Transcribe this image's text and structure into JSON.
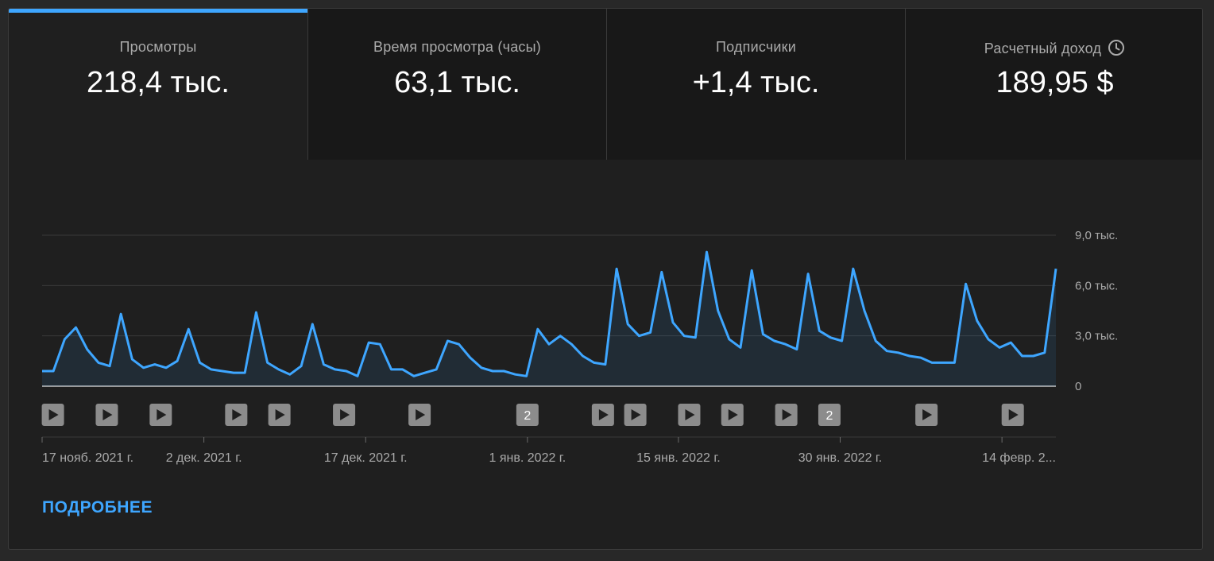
{
  "tabs": [
    {
      "label": "Просмотры",
      "value": "218,4 тыс.",
      "active": true
    },
    {
      "label": "Время просмотра (часы)",
      "value": "63,1 тыс.",
      "active": false
    },
    {
      "label": "Подписчики",
      "value": "+1,4 тыс.",
      "active": false
    },
    {
      "label": "Расчетный доход",
      "value": "189,95 $",
      "active": false,
      "icon": "clock-icon"
    }
  ],
  "more_label": "ПОДРОБНЕЕ",
  "colors": {
    "line": "#3ea6ff",
    "accent": "#3ea6ff"
  },
  "chart_data": {
    "type": "area",
    "x_start": "2021-11-17",
    "x_end": "2022-02-19",
    "y_ticks": [
      {
        "value": 0,
        "label": "0"
      },
      {
        "value": 3000,
        "label": "3,0 тыс."
      },
      {
        "value": 6000,
        "label": "6,0 тыс."
      },
      {
        "value": 9000,
        "label": "9,0 тыс."
      }
    ],
    "ylim": [
      0,
      9000
    ],
    "x_ticks": [
      {
        "date": "2021-11-17",
        "label": "17 нояб. 2021 г."
      },
      {
        "date": "2021-12-02",
        "label": "2 дек. 2021 г."
      },
      {
        "date": "2021-12-17",
        "label": "17 дек. 2021 г."
      },
      {
        "date": "2022-01-01",
        "label": "1 янв. 2022 г."
      },
      {
        "date": "2022-01-15",
        "label": "15 янв. 2022 г."
      },
      {
        "date": "2022-01-30",
        "label": "30 янв. 2022 г."
      },
      {
        "date": "2022-02-14",
        "label": "14 февр. 2..."
      }
    ],
    "values": [
      900,
      900,
      2800,
      3500,
      2200,
      1400,
      1200,
      4300,
      1600,
      1100,
      1300,
      1100,
      1500,
      3400,
      1400,
      1000,
      900,
      800,
      800,
      4400,
      1400,
      1000,
      700,
      1200,
      3700,
      1300,
      1000,
      900,
      600,
      2600,
      2500,
      1000,
      1000,
      600,
      800,
      1000,
      2700,
      2500,
      1700,
      1100,
      900,
      900,
      700,
      600,
      3400,
      2500,
      3000,
      2500,
      1800,
      1400,
      1300,
      7000,
      3700,
      3000,
      3200,
      6800,
      3800,
      3000,
      2900,
      8000,
      4500,
      2800,
      2300,
      6900,
      3100,
      2700,
      2500,
      2200,
      6700,
      3300,
      2900,
      2700,
      7000,
      4500,
      2700,
      2100,
      2000,
      1800,
      1700,
      1400,
      1400,
      1400,
      6100,
      3900,
      2800,
      2300,
      2600,
      1800,
      1800,
      2000,
      7000
    ],
    "video_markers": [
      {
        "date": "2021-11-18",
        "label": ""
      },
      {
        "date": "2021-11-23",
        "label": ""
      },
      {
        "date": "2021-11-28",
        "label": ""
      },
      {
        "date": "2021-12-05",
        "label": ""
      },
      {
        "date": "2021-12-09",
        "label": ""
      },
      {
        "date": "2021-12-15",
        "label": ""
      },
      {
        "date": "2021-12-22",
        "label": ""
      },
      {
        "date": "2022-01-01",
        "label": "2"
      },
      {
        "date": "2022-01-08",
        "label": ""
      },
      {
        "date": "2022-01-11",
        "label": ""
      },
      {
        "date": "2022-01-16",
        "label": ""
      },
      {
        "date": "2022-01-20",
        "label": ""
      },
      {
        "date": "2022-01-25",
        "label": ""
      },
      {
        "date": "2022-01-29",
        "label": "2"
      },
      {
        "date": "2022-02-07",
        "label": ""
      },
      {
        "date": "2022-02-15",
        "label": ""
      }
    ]
  }
}
